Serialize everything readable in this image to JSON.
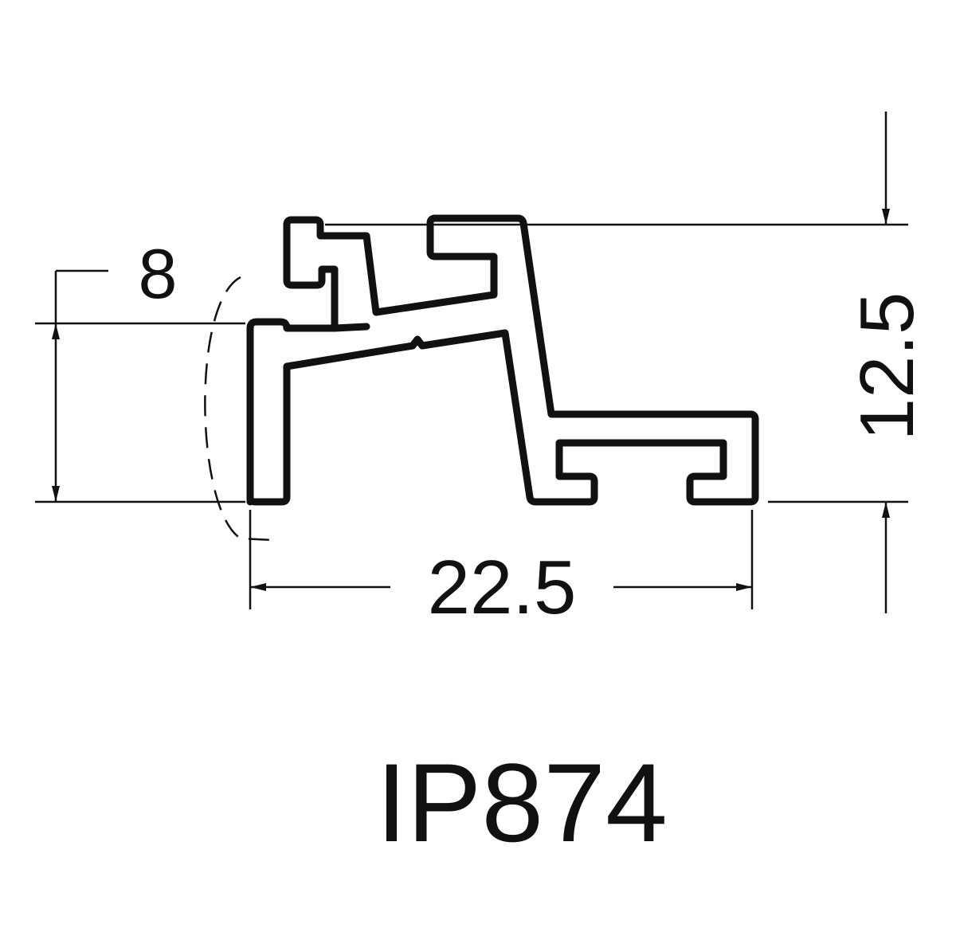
{
  "drawing": {
    "dimension_height_left": "8",
    "dimension_height_total": "12.5",
    "dimension_width": "22.5",
    "part_number": "IP874"
  }
}
